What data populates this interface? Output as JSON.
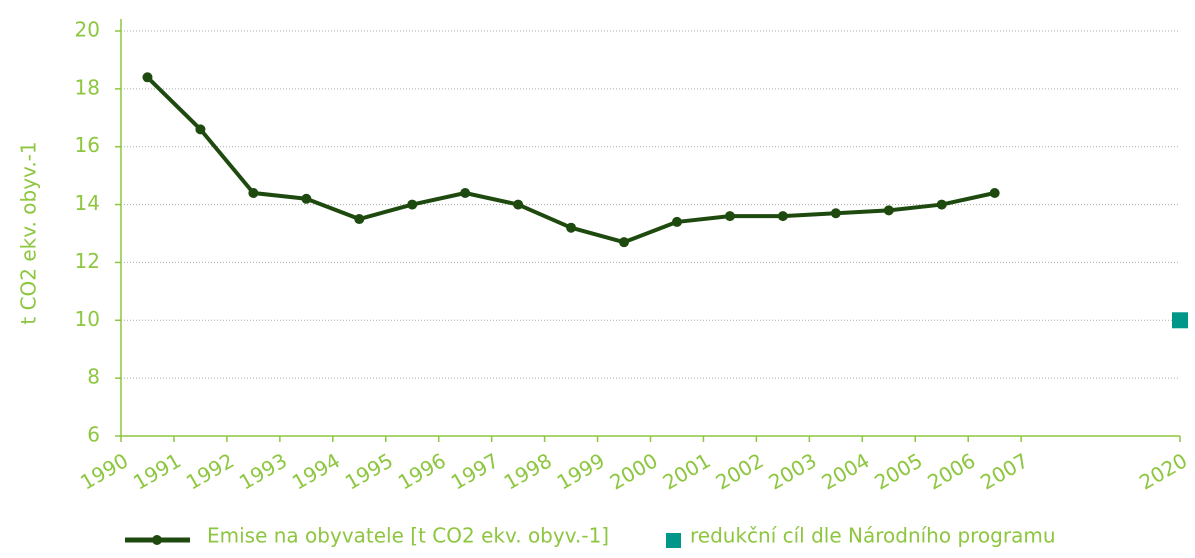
{
  "chart_data": {
    "type": "line",
    "y_label": "t CO2 ekv. obyv.-1",
    "categories": [
      "1990",
      "1991",
      "1992",
      "1993",
      "1994",
      "1995",
      "1996",
      "1997",
      "1998",
      "1999",
      "2000",
      "2001",
      "2002",
      "2003",
      "2004",
      "2005",
      "2006",
      "2007",
      null,
      null,
      "2020"
    ],
    "series": [
      {
        "name": "Emise na obyvatele [t CO2 ekv. obyv.-1]",
        "color": "#1e4a0f",
        "values": [
          18.4,
          16.6,
          14.4,
          14.2,
          13.5,
          14.0,
          14.4,
          14.0,
          13.2,
          12.7,
          13.4,
          13.6,
          13.6,
          13.7,
          13.8,
          14.0,
          14.4,
          null,
          null,
          null,
          null
        ]
      },
      {
        "name": "redukční cíl dle Národního programu",
        "color": "#009688",
        "values": [
          null,
          null,
          null,
          null,
          null,
          null,
          null,
          null,
          null,
          null,
          null,
          null,
          null,
          null,
          null,
          null,
          null,
          null,
          null,
          null,
          10
        ]
      }
    ],
    "ylim": [
      6,
      20
    ],
    "yticks": [
      6,
      8,
      10,
      12,
      14,
      16,
      18,
      20
    ],
    "grid": true
  }
}
